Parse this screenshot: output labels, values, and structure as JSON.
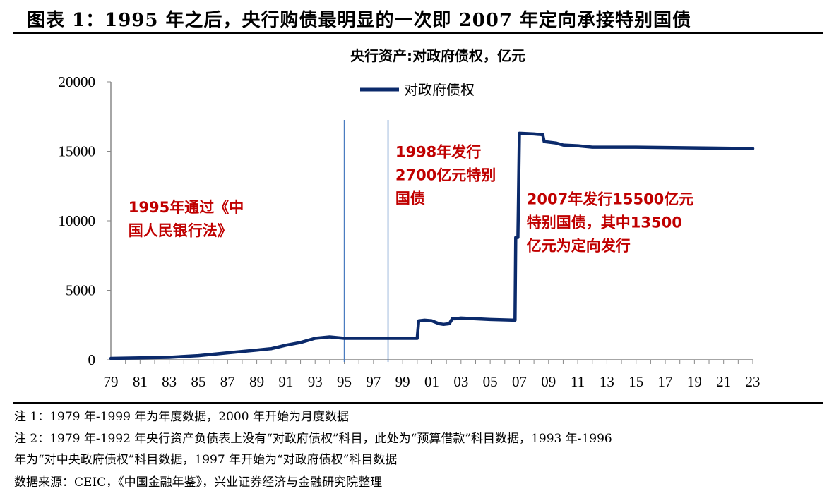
{
  "header": {
    "title": "图表 1：1995 年之后，央行购债最明显的一次即 2007 年定向承接特别国债"
  },
  "chart_data": {
    "type": "line",
    "title": "央行资产:对政府债权，亿元",
    "xlabel": "",
    "ylabel": "",
    "ylim": [
      0,
      20000
    ],
    "xlim": [
      1979,
      2023
    ],
    "yticks": [
      0,
      5000,
      10000,
      15000,
      20000
    ],
    "xtick_labels": [
      "79",
      "81",
      "83",
      "85",
      "87",
      "89",
      "91",
      "93",
      "95",
      "97",
      "99",
      "01",
      "03",
      "05",
      "07",
      "09",
      "11",
      "13",
      "15",
      "17",
      "19",
      "21",
      "23"
    ],
    "legend": {
      "placement": "top-center",
      "entries": [
        "对政府债权"
      ]
    },
    "grid": false,
    "series": [
      {
        "name": "对政府债权",
        "color": "#0b2a6b",
        "x": [
          1979,
          1981,
          1983,
          1985,
          1986,
          1987,
          1989,
          1990,
          1991,
          1992,
          1993,
          1994,
          1995,
          2000.0,
          2000.1,
          2000.5,
          2001,
          2001.5,
          2001.8,
          2002.2,
          2002.4,
          2002.6,
          2003,
          2005,
          2006.7,
          2006.75,
          2006.9,
          2007.0,
          2008,
          2008.6,
          2008.7,
          2009.5,
          2010,
          2011,
          2012,
          2015,
          2023
        ],
        "y": [
          100,
          140,
          180,
          300,
          400,
          500,
          700,
          800,
          1050,
          1250,
          1550,
          1650,
          1550,
          1550,
          2800,
          2850,
          2800,
          2600,
          2550,
          2600,
          2950,
          2950,
          3000,
          2900,
          2850,
          8800,
          8800,
          16300,
          16250,
          16200,
          15700,
          15600,
          15450,
          15400,
          15300,
          15300,
          15200
        ]
      }
    ],
    "vlines": [
      1995,
      1998
    ],
    "vline_color": "#4a7cc0",
    "annotations": [
      {
        "lines": [
          "1995年通过《中",
          "国人民银行法》"
        ],
        "x": 1980.2,
        "y": 10600,
        "color": "#c00000"
      },
      {
        "lines": [
          "1998年发行",
          "2700亿元特别",
          "国债"
        ],
        "x": 1998.5,
        "y": 14600,
        "color": "#c00000"
      },
      {
        "lines": [
          "2007年发行15500亿元",
          "特别国债，其中13500",
          "亿元为定向发行"
        ],
        "x": 2007.5,
        "y": 11200,
        "color": "#c00000"
      }
    ]
  },
  "notes": [
    "注 1：1979 年-1999 年为年度数据，2000 年开始为月度数据",
    "注 2：1979 年-1992 年央行资产负债表上没有“对政府债权”科目，此处为“预算借款”科目数据，1993 年-1996",
    "年为“对中央政府债权”科目数据，1997 年开始为“对政府债权”科目数据",
    "数据来源：CEIC，《中国金融年鉴》，兴业证券经济与金融研究院整理"
  ]
}
